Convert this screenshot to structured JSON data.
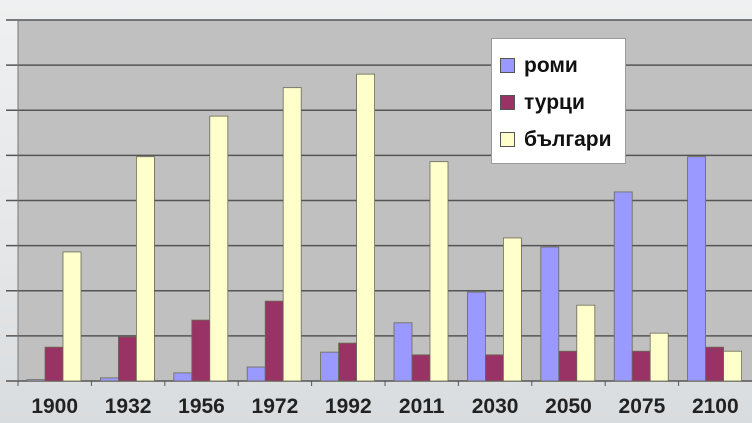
{
  "chart_data": {
    "type": "bar",
    "title": "",
    "xlabel": "",
    "ylabel": "",
    "ylim": [
      0,
      8
    ],
    "grid": true,
    "legend_position": "top-right",
    "categories": [
      "1900",
      "1932",
      "1956",
      "1972",
      "1992",
      "2011",
      "2030",
      "2050",
      "2075",
      "2100"
    ],
    "series": [
      {
        "name": "роми",
        "color": "#9999ff",
        "values": [
          0.03,
          0.07,
          0.18,
          0.31,
          0.64,
          1.29,
          1.97,
          2.97,
          4.19,
          4.97
        ]
      },
      {
        "name": "турци",
        "color": "#993366",
        "values": [
          0.75,
          0.98,
          1.35,
          1.77,
          0.84,
          0.58,
          0.58,
          0.66,
          0.66,
          0.75
        ]
      },
      {
        "name": "българи",
        "color": "#ffffcc",
        "values": [
          2.86,
          4.97,
          5.87,
          6.5,
          6.8,
          4.86,
          3.17,
          1.68,
          1.06,
          0.66
        ]
      }
    ]
  }
}
